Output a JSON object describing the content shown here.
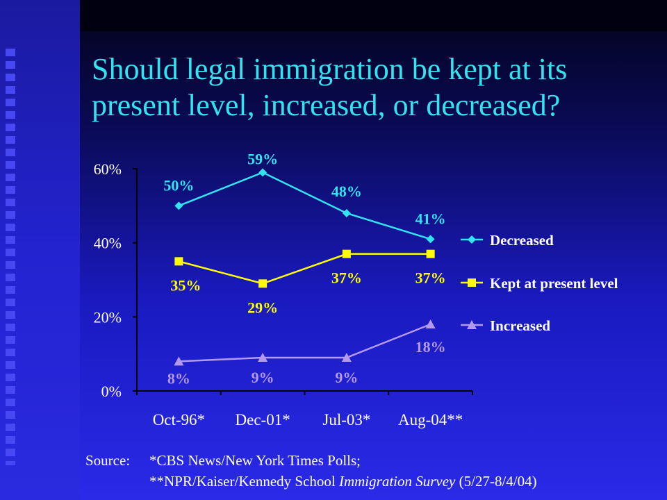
{
  "title": {
    "line1": "Should legal immigration be kept at its",
    "line2": "present level, increased, or decreased?"
  },
  "source": {
    "label": "Source:",
    "line1": "*CBS News/New York Times Polls;",
    "line2_pre": "**NPR/Kaiser/Kennedy School ",
    "line2_italic": "Immigration Survey",
    "line2_post": " (5/27-8/4/04)"
  },
  "chart_data": {
    "type": "line",
    "title": "Should legal immigration be kept at its present level, increased, or decreased?",
    "categories": [
      "Oct-96*",
      "Dec-01*",
      "Jul-03*",
      "Aug-04**"
    ],
    "ylim": [
      0,
      60
    ],
    "yticks": [
      0,
      20,
      40,
      60
    ],
    "ytick_labels": [
      "0%",
      "20%",
      "40%",
      "60%"
    ],
    "legend_position": "right",
    "series": [
      {
        "name": "Decreased",
        "values": [
          50,
          59,
          48,
          41
        ],
        "labels": [
          "50%",
          "59%",
          "48%",
          "41%"
        ],
        "color": "#33e3f0",
        "marker": "diamond"
      },
      {
        "name": "Kept at present level",
        "values": [
          35,
          29,
          37,
          37
        ],
        "labels": [
          "35%",
          "29%",
          "37%",
          "37%"
        ],
        "color": "#ffff00",
        "marker": "square"
      },
      {
        "name": "Increased",
        "values": [
          8,
          9,
          9,
          18
        ],
        "labels": [
          "8%",
          "9%",
          "9%",
          "18%"
        ],
        "color": "#b49aec",
        "marker": "triangle"
      }
    ]
  }
}
